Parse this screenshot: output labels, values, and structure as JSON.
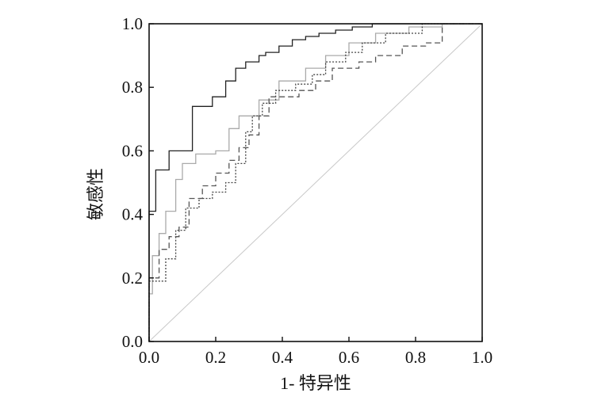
{
  "chart_data": {
    "type": "line",
    "title": "",
    "xlabel": "1- 特异性",
    "ylabel": "敏感性",
    "xlim": [
      0,
      1
    ],
    "ylim": [
      0,
      1
    ],
    "xticks": [
      "0.0",
      "0.2",
      "0.4",
      "0.6",
      "0.8",
      "1.0"
    ],
    "yticks": [
      "0.0",
      "0.2",
      "0.4",
      "0.6",
      "0.8",
      "1.0"
    ],
    "grid": false,
    "legend": "none",
    "reference_line": {
      "x": [
        0,
        1
      ],
      "y": [
        0,
        1
      ],
      "color": "#c8c8c8"
    },
    "series": [
      {
        "color": "#222222",
        "dash": "solid",
        "x": [
          0,
          0,
          0.02,
          0.02,
          0.06,
          0.06,
          0.13,
          0.13,
          0.19,
          0.19,
          0.23,
          0.23,
          0.26,
          0.26,
          0.29,
          0.29,
          0.33,
          0.33,
          0.35,
          0.35,
          0.39,
          0.39,
          0.43,
          0.43,
          0.47,
          0.47,
          0.51,
          0.51,
          0.56,
          0.56,
          0.61,
          0.61,
          0.67,
          0.67,
          0.73,
          0.73,
          1.0
        ],
        "y": [
          0,
          0.41,
          0.41,
          0.54,
          0.54,
          0.6,
          0.6,
          0.74,
          0.74,
          0.77,
          0.77,
          0.82,
          0.82,
          0.86,
          0.86,
          0.88,
          0.88,
          0.9,
          0.9,
          0.91,
          0.91,
          0.93,
          0.93,
          0.95,
          0.95,
          0.96,
          0.96,
          0.97,
          0.97,
          0.98,
          0.98,
          0.99,
          0.99,
          1.0,
          1.0,
          1.0,
          1.0
        ]
      },
      {
        "color": "#aaaaaa",
        "dash": "solid",
        "x": [
          0,
          0,
          0.01,
          0.01,
          0.03,
          0.03,
          0.05,
          0.05,
          0.08,
          0.08,
          0.1,
          0.1,
          0.14,
          0.14,
          0.2,
          0.2,
          0.24,
          0.24,
          0.27,
          0.27,
          0.33,
          0.33,
          0.39,
          0.39,
          0.47,
          0.47,
          0.53,
          0.53,
          0.6,
          0.6,
          0.68,
          0.68,
          0.78,
          0.78,
          0.88,
          0.88,
          1.0
        ],
        "y": [
          0,
          0.15,
          0.15,
          0.27,
          0.27,
          0.34,
          0.34,
          0.41,
          0.41,
          0.51,
          0.51,
          0.56,
          0.56,
          0.59,
          0.59,
          0.6,
          0.6,
          0.67,
          0.67,
          0.71,
          0.71,
          0.76,
          0.76,
          0.82,
          0.82,
          0.86,
          0.86,
          0.9,
          0.9,
          0.94,
          0.94,
          0.97,
          0.97,
          0.99,
          0.99,
          1.0,
          1.0
        ]
      },
      {
        "color": "#444444",
        "dash": "2,2",
        "x": [
          0,
          0,
          0.05,
          0.05,
          0.08,
          0.08,
          0.11,
          0.11,
          0.15,
          0.15,
          0.19,
          0.19,
          0.23,
          0.23,
          0.26,
          0.26,
          0.29,
          0.29,
          0.31,
          0.31,
          0.34,
          0.34,
          0.38,
          0.38,
          0.44,
          0.44,
          0.49,
          0.49,
          0.53,
          0.53,
          0.59,
          0.59,
          0.64,
          0.64,
          0.71,
          0.71,
          0.82,
          0.82,
          1.0
        ],
        "y": [
          0,
          0.19,
          0.19,
          0.26,
          0.26,
          0.35,
          0.35,
          0.42,
          0.42,
          0.45,
          0.45,
          0.47,
          0.47,
          0.5,
          0.5,
          0.56,
          0.56,
          0.66,
          0.66,
          0.71,
          0.71,
          0.75,
          0.75,
          0.79,
          0.79,
          0.81,
          0.81,
          0.84,
          0.84,
          0.88,
          0.88,
          0.91,
          0.91,
          0.94,
          0.94,
          0.97,
          0.97,
          1.0,
          1.0
        ]
      },
      {
        "color": "#555555",
        "dash": "7,4",
        "x": [
          0,
          0,
          0.03,
          0.03,
          0.06,
          0.06,
          0.09,
          0.09,
          0.12,
          0.12,
          0.16,
          0.16,
          0.2,
          0.2,
          0.24,
          0.24,
          0.27,
          0.27,
          0.3,
          0.3,
          0.33,
          0.33,
          0.36,
          0.36,
          0.45,
          0.45,
          0.5,
          0.5,
          0.55,
          0.55,
          0.63,
          0.63,
          0.68,
          0.68,
          0.76,
          0.76,
          0.83,
          0.83,
          0.88,
          0.88,
          1.0
        ],
        "y": [
          0,
          0.2,
          0.2,
          0.29,
          0.29,
          0.33,
          0.33,
          0.36,
          0.36,
          0.45,
          0.45,
          0.49,
          0.49,
          0.53,
          0.53,
          0.57,
          0.57,
          0.61,
          0.61,
          0.65,
          0.65,
          0.71,
          0.71,
          0.77,
          0.77,
          0.79,
          0.79,
          0.82,
          0.82,
          0.86,
          0.86,
          0.88,
          0.88,
          0.9,
          0.9,
          0.93,
          0.93,
          0.94,
          0.94,
          1.0,
          1.0
        ]
      }
    ]
  }
}
